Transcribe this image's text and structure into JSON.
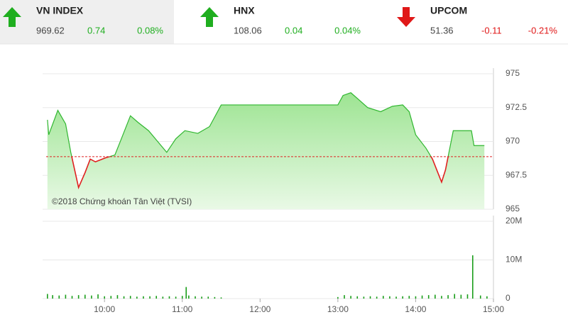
{
  "header": {
    "indices": [
      {
        "name": "VN INDEX",
        "direction": "up",
        "value": "969.62",
        "change": "0.74",
        "percent": "0.08%"
      },
      {
        "name": "HNX",
        "direction": "up",
        "value": "108.06",
        "change": "0.04",
        "percent": "0.04%"
      },
      {
        "name": "UPCOM",
        "direction": "down",
        "value": "51.36",
        "change": "-0.11",
        "percent": "-0.21%"
      }
    ]
  },
  "chart_data": [
    {
      "type": "area",
      "color": "#2fb62f",
      "down_color": "#e02020",
      "fill": "#a8e8a0",
      "reference": 968.88,
      "annotation": "©2018 Chứng khoán Tân Việt (TVSI)",
      "x": [
        556,
        557,
        564,
        570,
        574,
        580,
        585,
        589,
        593,
        601,
        608,
        613,
        620,
        626,
        634,
        641,
        648,
        655,
        662,
        672,
        681,
        690,
        780,
        784,
        790,
        796,
        803,
        813,
        822,
        830,
        835,
        840,
        848,
        853,
        860,
        863,
        869,
        883,
        885,
        893
      ],
      "values": [
        971.6,
        970.5,
        972.3,
        971.3,
        969.2,
        966.6,
        967.7,
        968.7,
        968.5,
        968.8,
        969.0,
        970.2,
        971.9,
        971.4,
        970.8,
        970.0,
        969.2,
        970.2,
        970.8,
        970.6,
        971.1,
        972.7,
        972.7,
        973.4,
        973.6,
        973.1,
        972.5,
        972.2,
        972.6,
        972.7,
        972.2,
        970.5,
        969.5,
        968.7,
        967.0,
        967.9,
        970.8,
        970.8,
        969.7,
        969.7
      ],
      "xlim": [
        555,
        900
      ],
      "ylim": [
        965,
        975
      ],
      "yticks": [
        965,
        967.5,
        970,
        972.5,
        975
      ],
      "grid": true
    },
    {
      "type": "bar",
      "color": "#1a9e1a",
      "x": [
        556,
        560,
        565,
        570,
        575,
        580,
        585,
        590,
        595,
        600,
        605,
        610,
        615,
        620,
        625,
        630,
        635,
        640,
        645,
        650,
        655,
        660,
        663,
        665,
        670,
        675,
        680,
        685,
        690,
        780,
        785,
        790,
        795,
        800,
        805,
        810,
        815,
        820,
        825,
        830,
        835,
        840,
        845,
        850,
        855,
        860,
        865,
        870,
        875,
        880,
        884,
        890,
        895
      ],
      "values": [
        1.2,
        0.9,
        0.8,
        1.0,
        0.7,
        0.9,
        1.0,
        0.8,
        1.1,
        0.6,
        0.7,
        0.9,
        0.6,
        0.7,
        0.5,
        0.6,
        0.6,
        0.7,
        0.5,
        0.6,
        0.5,
        0.7,
        3.0,
        0.8,
        0.6,
        0.5,
        0.5,
        0.4,
        0.3,
        0.4,
        0.9,
        0.7,
        0.6,
        0.5,
        0.6,
        0.5,
        0.7,
        0.6,
        0.5,
        0.6,
        0.7,
        0.6,
        0.8,
        0.9,
        1.0,
        0.7,
        0.9,
        1.2,
        1.0,
        1.1,
        11.2,
        0.8,
        0.6
      ],
      "xlim": [
        555,
        900
      ],
      "ylim": [
        0,
        20
      ],
      "yticks": [
        0,
        {
          "value": 10,
          "label": "10M"
        },
        {
          "value": 20,
          "label": "20M"
        }
      ],
      "xticks": [
        {
          "value": 600,
          "label": "10:00"
        },
        {
          "value": 660,
          "label": "11:00"
        },
        {
          "value": 720,
          "label": "12:00"
        },
        {
          "value": 780,
          "label": "13:00"
        },
        {
          "value": 840,
          "label": "14:00"
        },
        {
          "value": 900,
          "label": "15:00"
        }
      ],
      "grid": true
    }
  ]
}
